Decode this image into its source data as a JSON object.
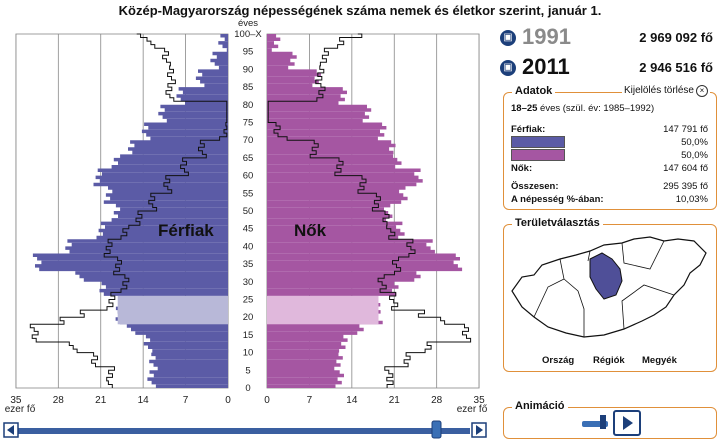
{
  "title": "Közép-Magyarország népességének száma nemek és életkor szerint, január 1.",
  "pyramid": {
    "unit_top": "éves",
    "age_labels": [
      "100–X",
      "95",
      "90",
      "85",
      "80",
      "75",
      "70",
      "65",
      "60",
      "55",
      "50",
      "45",
      "40",
      "35",
      "30",
      "25",
      "20",
      "15",
      "10",
      "5",
      "0"
    ],
    "x_ticks_left": [
      "35",
      "28",
      "21",
      "14",
      "7",
      "0"
    ],
    "x_ticks_right": [
      "0",
      "7",
      "14",
      "21",
      "28",
      "35"
    ],
    "x_unit": "ezer fő",
    "men_label": "Férfiak",
    "women_label": "Nők",
    "colors": {
      "men": "#5b5ba6",
      "women": "#a556a2",
      "men_sel": "#b8b8d8",
      "women_sel": "#e0b8dc"
    }
  },
  "years": [
    {
      "year": "1991",
      "population": "2 969 092 fő"
    },
    {
      "year": "2011",
      "population": "2 946 516 fő"
    }
  ],
  "details": {
    "title": "Adatok",
    "clear_label": "Kijelölés törlése",
    "range_bold": "18–25",
    "range_rest": " éves (szül. év: 1985–1992)",
    "men_label": "Férfiak:",
    "men_value": "147 791 fő",
    "men_pct": "50,0%",
    "women_pct": "50,0%",
    "women_label": "Nők:",
    "women_value": "147 604 fő",
    "total_label": "Összesen:",
    "total_value": "295 395 fő",
    "share_label": "A népesség %-ában:",
    "share_value": "10,03%"
  },
  "region": {
    "title": "Területválasztás",
    "options": [
      "Ország",
      "Régiók",
      "Megyék"
    ]
  },
  "animation": {
    "title": "Animáció"
  }
}
